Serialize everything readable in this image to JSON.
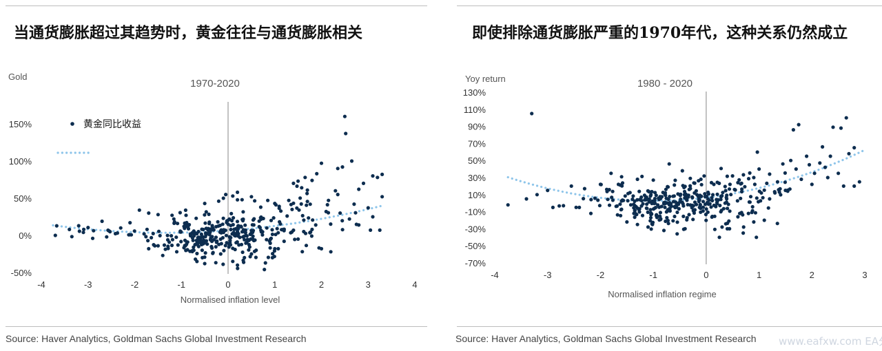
{
  "colors": {
    "dot": "#0d2d4f",
    "trend": "#8ec5ea",
    "divider": "#9a9a9a"
  },
  "left": {
    "headline": "当通货膨胀超过其趋势时，黄金往往与通货膨胀相关",
    "source": "Source: Haver Analytics, Goldman Sachs Global Investment Research"
  },
  "right": {
    "headline": "即使排除通货膨胀严重的1970年代，这种关系仍然成立",
    "source": "Source: Haver Analytics, Goldman Sachs Global Investment Research"
  },
  "watermark": "www.eafxw.com  EA分享网",
  "chart_data": [
    {
      "type": "scatter",
      "title": "1970-2020",
      "xlabel": "Normalised inflation level",
      "ylabel": "Gold",
      "xlim": [
        -4,
        4
      ],
      "ylim": [
        -50,
        150
      ],
      "x_ticks": [
        "-4",
        "-3",
        "-2",
        "-1",
        "0",
        "1",
        "2",
        "3",
        "4"
      ],
      "y_ticks": [
        "150%",
        "100%",
        "50%",
        "0%",
        "-50%"
      ],
      "legend": [
        "黄金同比收益"
      ],
      "legend_position": "top-left",
      "trend": {
        "a": 6.5,
        "b": 4.5,
        "c": 1.7
      },
      "cloud_clusters": [
        {
          "cx": -0.6,
          "cy": -3,
          "sx": 0.5,
          "sy": 13,
          "n": 170
        },
        {
          "cx": 0.35,
          "cy": 2,
          "sx": 0.45,
          "sy": 16,
          "n": 110
        },
        {
          "cx": 1.6,
          "cy": 22,
          "sx": 0.6,
          "sy": 22,
          "n": 55
        },
        {
          "cx": -2.5,
          "cy": 3,
          "sx": 0.7,
          "sy": 8,
          "n": 18
        }
      ],
      "series": [
        {
          "values": [
            [
              -3.7,
              0
            ],
            [
              -3.4,
              8
            ],
            [
              -3.2,
              13
            ],
            [
              -3.1,
              4
            ],
            [
              -2.9,
              -4
            ],
            [
              -2.7,
              19
            ],
            [
              -2.6,
              -2
            ],
            [
              -2.55,
              6
            ],
            [
              -2.3,
              10
            ],
            [
              -2.1,
              17
            ],
            [
              -1.9,
              34
            ],
            [
              -1.8,
              2
            ],
            [
              -1.7,
              30
            ],
            [
              -1.5,
              28
            ],
            [
              -1.2,
              27
            ],
            [
              -0.9,
              27
            ],
            [
              -0.5,
              43
            ],
            [
              -0.2,
              46
            ],
            [
              -0.1,
              50
            ],
            [
              -0.05,
              55
            ],
            [
              0.1,
              53
            ],
            [
              0.2,
              58
            ],
            [
              0.3,
              48
            ],
            [
              0.5,
              52
            ],
            [
              0.7,
              38
            ],
            [
              0.85,
              47
            ],
            [
              1.0,
              43
            ],
            [
              1.3,
              47
            ],
            [
              1.4,
              70
            ],
            [
              1.5,
              73
            ],
            [
              1.65,
              78
            ],
            [
              1.8,
              74
            ],
            [
              1.9,
              83
            ],
            [
              2.0,
              97
            ],
            [
              2.15,
              47
            ],
            [
              2.3,
              60
            ],
            [
              2.35,
              90
            ],
            [
              2.45,
              92
            ],
            [
              2.5,
              160
            ],
            [
              2.52,
              137
            ],
            [
              2.65,
              100
            ],
            [
              2.8,
              62
            ],
            [
              2.9,
              70
            ],
            [
              3.0,
              37
            ],
            [
              3.1,
              80
            ],
            [
              3.2,
              78
            ],
            [
              3.3,
              82
            ],
            [
              3.25,
              7
            ],
            [
              3.05,
              7
            ],
            [
              3.1,
              25
            ],
            [
              2.8,
              14
            ],
            [
              2.6,
              22
            ],
            [
              2.4,
              30
            ],
            [
              2.35,
              55
            ],
            [
              1.0,
              -18
            ],
            [
              1.2,
              -8
            ],
            [
              0.5,
              -25
            ],
            [
              0.35,
              -30
            ],
            [
              0.2,
              -40
            ],
            [
              0.1,
              -35
            ],
            [
              -0.5,
              -38
            ],
            [
              -0.55,
              -30
            ],
            [
              -0.7,
              -32
            ],
            [
              -1.1,
              -22
            ],
            [
              -1.4,
              -27
            ],
            [
              -1.7,
              -18
            ],
            [
              0.8,
              -37
            ],
            [
              0.95,
              -30
            ],
            [
              2.0,
              -18
            ],
            [
              2.2,
              -22
            ],
            [
              1.5,
              -5
            ],
            [
              1.8,
              8
            ],
            [
              2.1,
              32
            ],
            [
              2.7,
              42
            ],
            [
              3.3,
              52
            ]
          ]
        }
      ]
    },
    {
      "type": "scatter",
      "title": "1980 - 2020",
      "xlabel": "Normalised inflation regime",
      "ylabel": "Yoy return",
      "xlim": [
        -4,
        3
      ],
      "ylim": [
        -70,
        130
      ],
      "x_ticks": [
        "-4",
        "-3",
        "-2",
        "-1",
        "0",
        "1",
        "2",
        "3"
      ],
      "y_ticks": [
        "130%",
        "110%",
        "90%",
        "70%",
        "50%",
        "30%",
        "10%",
        "-10%",
        "-30%",
        "-50%",
        "-70%"
      ],
      "trend": {
        "a": 6.5,
        "b": 7.5,
        "c": 3.7
      },
      "cloud_clusters": [
        {
          "cx": -0.9,
          "cy": -2,
          "sx": 0.45,
          "sy": 11,
          "n": 160
        },
        {
          "cx": -0.1,
          "cy": 2,
          "sx": 0.45,
          "sy": 12,
          "n": 100
        },
        {
          "cx": 0.75,
          "cy": 12,
          "sx": 0.45,
          "sy": 14,
          "n": 50
        },
        {
          "cx": -1.7,
          "cy": 6,
          "sx": 0.4,
          "sy": 12,
          "n": 35
        }
      ],
      "series": [
        {
          "values": [
            [
              -3.75,
              -2
            ],
            [
              -3.4,
              5
            ],
            [
              -3.3,
              105
            ],
            [
              -3.2,
              10
            ],
            [
              -3.0,
              15
            ],
            [
              -2.9,
              -5
            ],
            [
              -2.7,
              -3
            ],
            [
              -2.55,
              20
            ],
            [
              -2.4,
              -5
            ],
            [
              -2.3,
              17
            ],
            [
              -2.0,
              22
            ],
            [
              -1.8,
              35
            ],
            [
              -1.6,
              31
            ],
            [
              -1.3,
              28
            ],
            [
              -1.0,
              27
            ],
            [
              -0.7,
              46
            ],
            [
              -0.45,
              38
            ],
            [
              -0.3,
              29
            ],
            [
              -0.1,
              28
            ],
            [
              0.1,
              24
            ],
            [
              0.45,
              22
            ],
            [
              0.6,
              24
            ],
            [
              0.9,
              30
            ],
            [
              1.0,
              40
            ],
            [
              1.2,
              34
            ],
            [
              1.35,
              25
            ],
            [
              1.45,
              46
            ],
            [
              1.6,
              50
            ],
            [
              1.65,
              86
            ],
            [
              1.75,
              92
            ],
            [
              1.9,
              55
            ],
            [
              2.05,
              35
            ],
            [
              2.15,
              47
            ],
            [
              2.2,
              66
            ],
            [
              2.3,
              30
            ],
            [
              2.4,
              89
            ],
            [
              2.5,
              35
            ],
            [
              2.55,
              88
            ],
            [
              2.65,
              100
            ],
            [
              2.6,
              20
            ],
            [
              2.8,
              20
            ],
            [
              2.9,
              25
            ],
            [
              2.35,
              55
            ],
            [
              1.95,
              45
            ],
            [
              1.7,
              40
            ],
            [
              1.5,
              15
            ],
            [
              1.3,
              12
            ],
            [
              1.2,
              5
            ],
            [
              0.9,
              -22
            ],
            [
              0.95,
              -40
            ],
            [
              0.7,
              -35
            ],
            [
              0.4,
              -30
            ],
            [
              0.25,
              -40
            ],
            [
              0.3,
              -28
            ],
            [
              -0.4,
              -30
            ],
            [
              -0.55,
              -36
            ],
            [
              -1.1,
              -28
            ],
            [
              -1.5,
              -22
            ],
            [
              -1.3,
              -25
            ],
            [
              -0.8,
              -32
            ],
            [
              1.1,
              -20
            ],
            [
              0.8,
              -12
            ],
            [
              0.6,
              -16
            ],
            [
              1.8,
              28
            ],
            [
              2.0,
              22
            ],
            [
              2.25,
              42
            ],
            [
              2.7,
              58
            ],
            [
              2.8,
              65
            ]
          ]
        }
      ]
    }
  ]
}
